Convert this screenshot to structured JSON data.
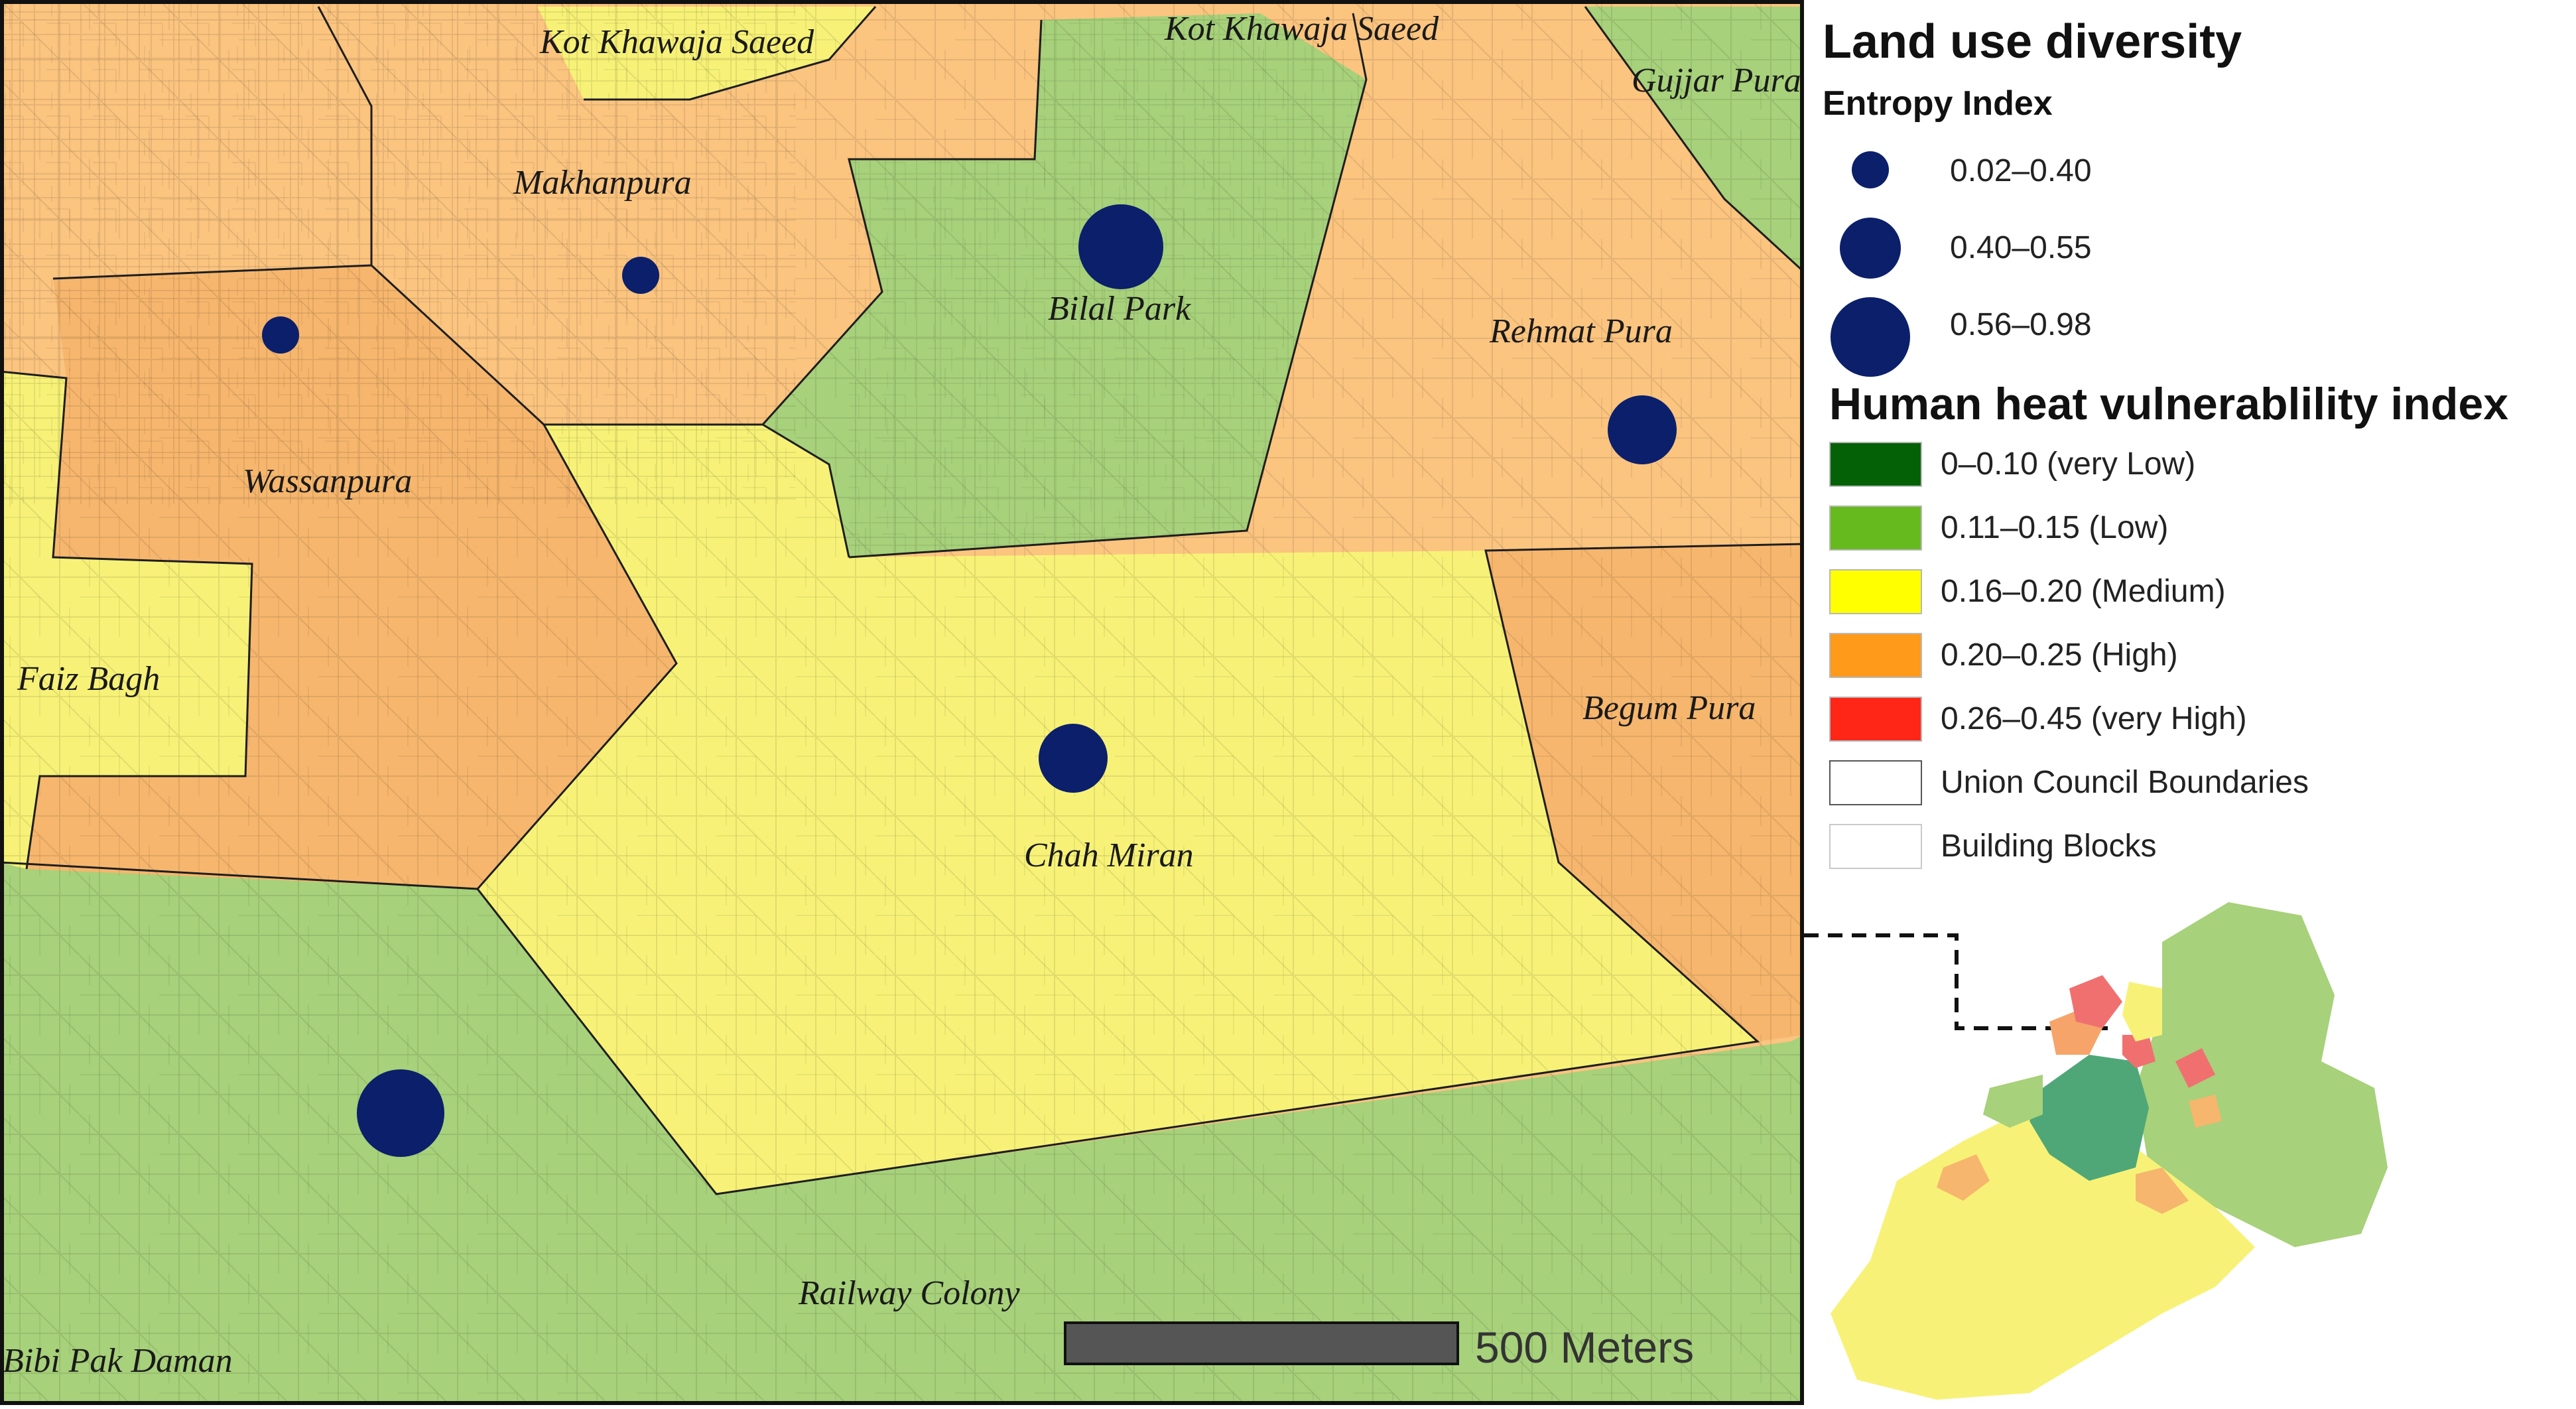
{
  "map": {
    "places": [
      {
        "id": "kot-khawaja-saeed-1",
        "label": "Kot Khawaja Saeed"
      },
      {
        "id": "kot-khawaja-saeed-2",
        "label": "Kot Khawaja Saeed"
      },
      {
        "id": "gujjar-pura",
        "label": "Gujjar Pura"
      },
      {
        "id": "makhanpura",
        "label": "Makhanpura"
      },
      {
        "id": "bilal-park",
        "label": "Bilal Park"
      },
      {
        "id": "rehmat-pura",
        "label": "Rehmat Pura"
      },
      {
        "id": "wassanpura",
        "label": "Wassanpura"
      },
      {
        "id": "faiz-bagh",
        "label": "Faiz Bagh"
      },
      {
        "id": "begum-pura",
        "label": "Begum Pura"
      },
      {
        "id": "chah-miran",
        "label": "Chah Miran"
      },
      {
        "id": "railway-colony",
        "label": "Railway Colony"
      },
      {
        "id": "bibi-pak-daman",
        "label": "Bibi Pak Daman"
      }
    ],
    "scale_bar_label": "500 Meters"
  },
  "legend": {
    "title": "Land use diversity",
    "entropy_title": "Entropy Index",
    "entropy_classes": [
      {
        "label": "0.02–0.40",
        "size": "small"
      },
      {
        "label": "0.40–0.55",
        "size": "medium"
      },
      {
        "label": "0.56–0.98",
        "size": "large"
      }
    ],
    "hhvi_title": "Human heat vulnerablility index",
    "hhvi_classes": [
      {
        "label": "0–0.10 (very Low)",
        "color": "#056105"
      },
      {
        "label": "0.11–0.15 (Low)",
        "color": "#67ba1e"
      },
      {
        "label": "0.16–0.20 (Medium)",
        "color": "#ffff00"
      },
      {
        "label": "0.20–0.25 (High)",
        "color": "#ff9a1a"
      },
      {
        "label": "0.26–0.45 (very High)",
        "color": "#ff2618"
      },
      {
        "label": "Union Council Boundaries",
        "color": "#ffffff"
      },
      {
        "label": "Building Blocks",
        "color": "#ffffff"
      }
    ]
  },
  "colors": {
    "low_fill": "#a7d17a",
    "medium_fill": "#f7f277",
    "high_fill": "#f6b66d",
    "high_alt_fill": "#fbc47f",
    "entropy_dot": "#0b1f6b",
    "boundary": "#1e1e1e"
  }
}
